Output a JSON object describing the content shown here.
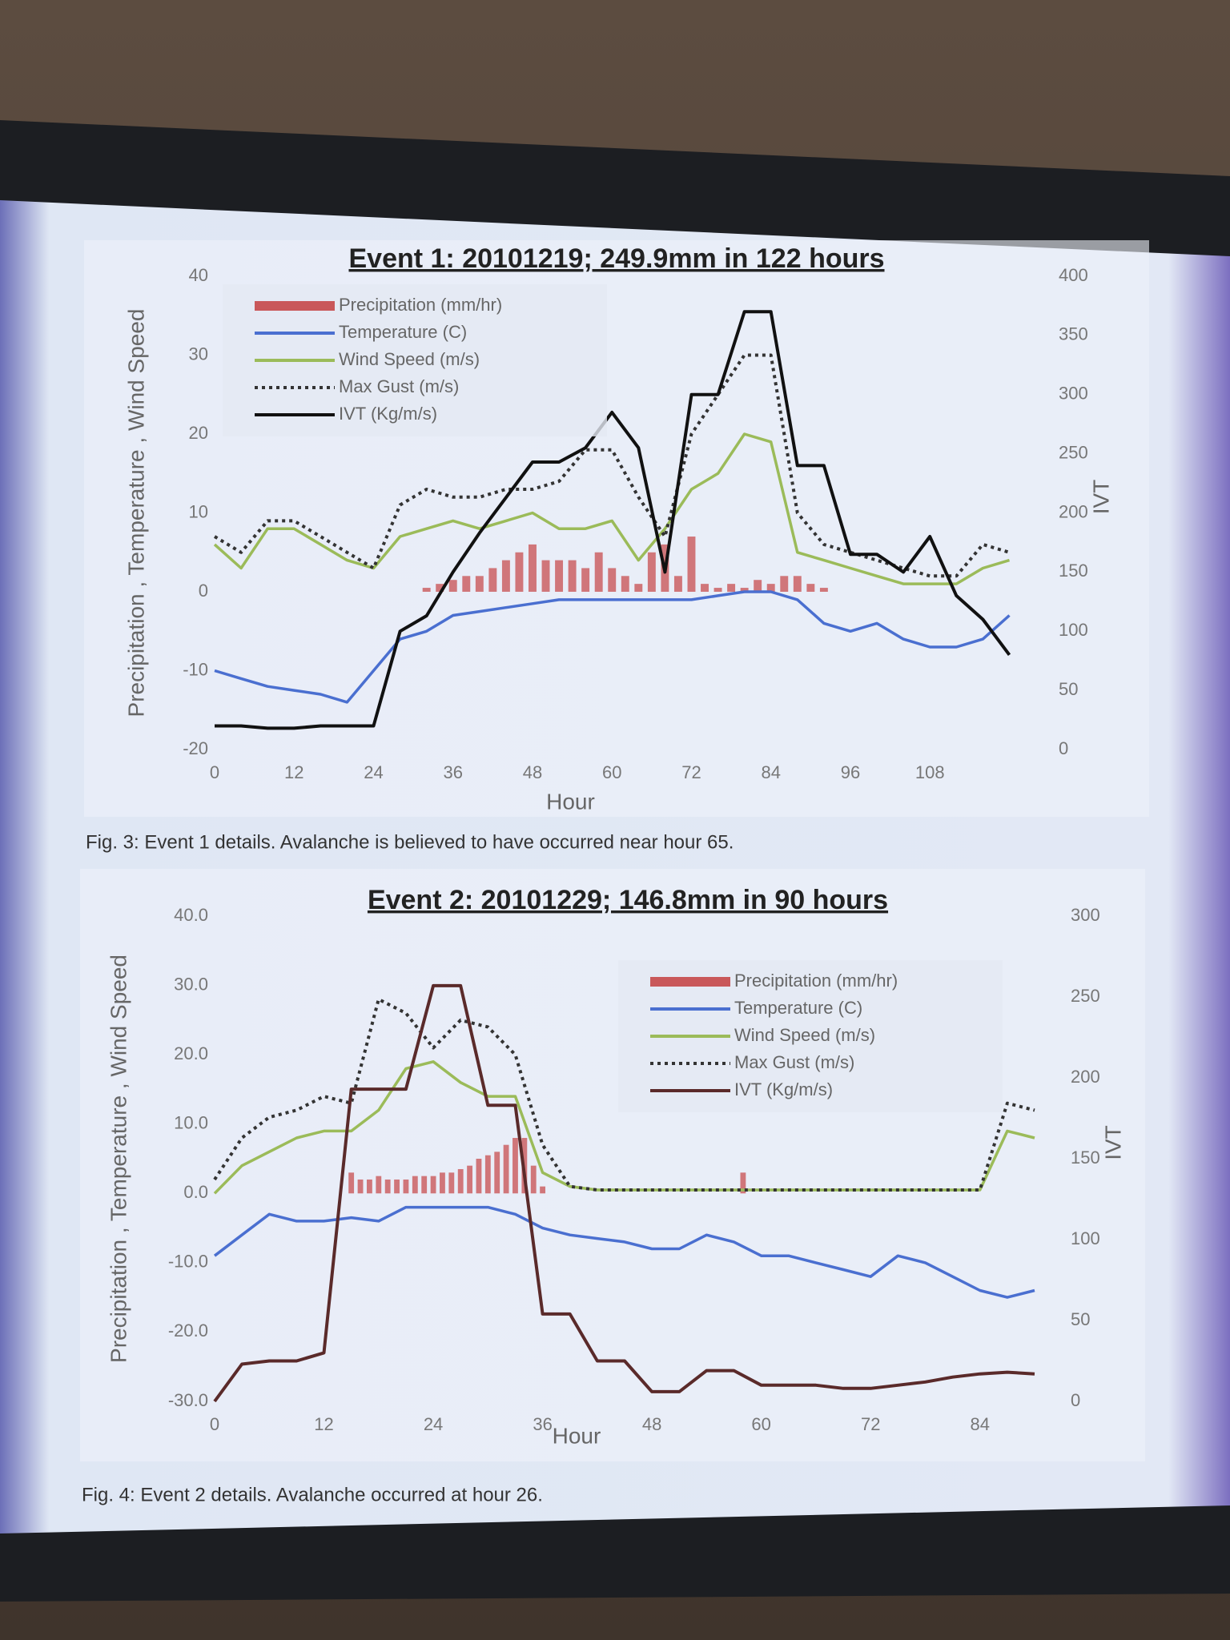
{
  "chart_data": [
    {
      "type": "line",
      "title": "Event 1: 20101219; 249.9mm in 122 hours",
      "caption": "Fig. 3: Event 1 details. Avalanche is believed to have occurred near hour 65.",
      "xlabel": "Hour",
      "ylabel": "Precipitation , Temperature , Wind Speed",
      "y2label": "IVT",
      "xlim": [
        0,
        122
      ],
      "xticks": [
        0,
        12,
        24,
        36,
        48,
        60,
        72,
        84,
        96,
        108
      ],
      "ylim": [
        -20,
        40
      ],
      "yticks": [
        -20,
        -10,
        0,
        10,
        20,
        30,
        40
      ],
      "y2lim": [
        0,
        400
      ],
      "y2ticks": [
        0,
        50,
        100,
        150,
        200,
        250,
        300,
        350,
        400
      ],
      "legend": "upper left",
      "grid": false,
      "x": [
        0,
        4,
        8,
        12,
        16,
        20,
        24,
        28,
        32,
        36,
        40,
        44,
        48,
        52,
        56,
        60,
        64,
        68,
        72,
        76,
        80,
        84,
        88,
        92,
        96,
        100,
        104,
        108,
        112,
        116,
        120
      ],
      "series": [
        {
          "name": "Precipitation (mm/hr)",
          "kind": "bar",
          "color": "#c9585a",
          "x": [
            32,
            34,
            36,
            38,
            40,
            42,
            44,
            46,
            48,
            50,
            52,
            54,
            56,
            58,
            60,
            62,
            64,
            66,
            68,
            70,
            72,
            74,
            76,
            78,
            80,
            82,
            84,
            86,
            88,
            90,
            92
          ],
          "values": [
            0.5,
            1,
            1.5,
            2,
            2,
            3,
            4,
            5,
            6,
            4,
            4,
            4,
            3,
            5,
            3,
            2,
            1,
            5,
            6,
            2,
            7,
            1,
            0.5,
            1,
            0.5,
            1.5,
            1,
            2,
            2,
            1,
            0.5
          ]
        },
        {
          "name": "Temperature (C)",
          "kind": "line",
          "color": "#4a6fd0",
          "values": [
            -10,
            -11,
            -12,
            -12.5,
            -13,
            -14,
            -10,
            -6,
            -5,
            -3,
            -2.5,
            -2,
            -1.5,
            -1,
            -1,
            -1,
            -1,
            -1,
            -1,
            -0.5,
            0,
            0,
            -1,
            -4,
            -5,
            -4,
            -6,
            -7,
            -7,
            -6,
            -3
          ]
        },
        {
          "name": "Wind Speed (m/s)",
          "kind": "line",
          "color": "#9bbb59",
          "values": [
            6,
            3,
            8,
            8,
            6,
            4,
            3,
            7,
            8,
            9,
            8,
            9,
            10,
            8,
            8,
            9,
            4,
            8,
            13,
            15,
            20,
            19,
            5,
            4,
            3,
            2,
            1,
            1,
            1,
            3,
            4
          ]
        },
        {
          "name": "Max Gust (m/s)",
          "kind": "line",
          "dash": true,
          "color": "#333333",
          "values": [
            7,
            5,
            9,
            9,
            7,
            5,
            3,
            11,
            13,
            12,
            12,
            13,
            13,
            14,
            18,
            18,
            12,
            7,
            20,
            25,
            30,
            30,
            10,
            6,
            5,
            4,
            3,
            2,
            2,
            6,
            5
          ]
        },
        {
          "name": "IVT (Kg/m/s)",
          "kind": "line",
          "axis": "y2",
          "color": "#111111",
          "values": [
            20,
            20,
            18,
            18,
            20,
            20,
            20,
            100,
            113,
            150,
            183,
            213,
            243,
            243,
            255,
            285,
            255,
            150,
            300,
            300,
            370,
            370,
            240,
            240,
            165,
            165,
            150,
            180,
            130,
            110,
            80
          ]
        }
      ]
    },
    {
      "type": "line",
      "title": "Event 2: 20101229; 146.8mm in 90 hours",
      "caption": "Fig. 4: Event 2 details. Avalanche occurred at hour 26.",
      "xlabel": "Hour",
      "ylabel": "Precipitation , Temperature , Wind Speed",
      "y2label": "IVT",
      "xlim": [
        0,
        90
      ],
      "xticks": [
        0,
        12,
        24,
        36,
        48,
        60,
        72,
        84
      ],
      "ylim": [
        -30,
        40
      ],
      "yticks": [
        {
          "value": -30,
          "label": "-30.0"
        },
        {
          "value": -20,
          "label": "-20.0"
        },
        {
          "value": -10,
          "label": "-10.0"
        },
        {
          "value": 0,
          "label": "0.0"
        },
        {
          "value": 10,
          "label": "10.0"
        },
        {
          "value": 20,
          "label": "20.0"
        },
        {
          "value": 30,
          "label": "30.0"
        },
        {
          "value": 40,
          "label": "40.0"
        }
      ],
      "y2lim": [
        0,
        300
      ],
      "y2ticks": [
        0,
        50,
        100,
        150,
        200,
        250,
        300
      ],
      "legend": "upper right",
      "grid": false,
      "x": [
        0,
        3,
        6,
        9,
        12,
        15,
        18,
        21,
        24,
        27,
        30,
        33,
        36,
        39,
        42,
        45,
        48,
        51,
        54,
        57,
        60,
        63,
        66,
        69,
        72,
        75,
        78,
        81,
        84,
        87,
        90
      ],
      "series": [
        {
          "name": "Precipitation (mm/hr)",
          "kind": "bar",
          "color": "#c9585a",
          "x": [
            15,
            16,
            17,
            18,
            19,
            20,
            21,
            22,
            23,
            24,
            25,
            26,
            27,
            28,
            29,
            30,
            31,
            32,
            33,
            34,
            35,
            36,
            58
          ],
          "values": [
            3,
            2,
            2,
            2.5,
            2,
            2,
            2,
            2.5,
            2.5,
            2.5,
            3,
            3,
            3.5,
            4,
            5,
            5.5,
            6,
            7,
            8,
            8,
            4,
            1,
            3
          ]
        },
        {
          "name": "Temperature (C)",
          "kind": "line",
          "color": "#4a6fd0",
          "values": [
            -9,
            -6,
            -3,
            -4,
            -4,
            -3.5,
            -4,
            -2,
            -2,
            -2,
            -2,
            -3,
            -5,
            -6,
            -6.5,
            -7,
            -8,
            -8,
            -6,
            -7,
            -9,
            -9,
            -10,
            -11,
            -12,
            -9,
            -10,
            -12,
            -14,
            -15,
            -14
          ]
        },
        {
          "name": "Wind Speed (m/s)",
          "kind": "line",
          "color": "#9bbb59",
          "values": [
            0,
            4,
            6,
            8,
            9,
            9,
            12,
            18,
            19,
            16,
            14,
            14,
            3,
            1,
            0.5,
            0.5,
            0.5,
            0.5,
            0.5,
            0.5,
            0.5,
            0.5,
            0.5,
            0.5,
            0.5,
            0.5,
            0.5,
            0.5,
            0.5,
            9,
            8
          ]
        },
        {
          "name": "Max Gust (m/s)",
          "kind": "line",
          "dash": true,
          "color": "#333333",
          "values": [
            2,
            8,
            11,
            12,
            14,
            13,
            28,
            26,
            21,
            25,
            24,
            20,
            7,
            1,
            0.5,
            0.5,
            0.5,
            0.5,
            0.5,
            0.5,
            0.5,
            0.5,
            0.5,
            0.5,
            0.5,
            0.5,
            0.5,
            0.5,
            0.5,
            13,
            12
          ]
        },
        {
          "name": "IVT (Kg/m/s)",
          "kind": "line",
          "axis": "y2",
          "color": "#5a2a2a",
          "values": [
            0,
            23,
            25,
            25,
            30,
            193,
            193,
            193,
            257,
            257,
            183,
            183,
            54,
            54,
            25,
            25,
            6,
            6,
            19,
            19,
            10,
            10,
            10,
            8,
            8,
            10,
            12,
            15,
            17,
            18,
            17
          ]
        }
      ]
    }
  ]
}
